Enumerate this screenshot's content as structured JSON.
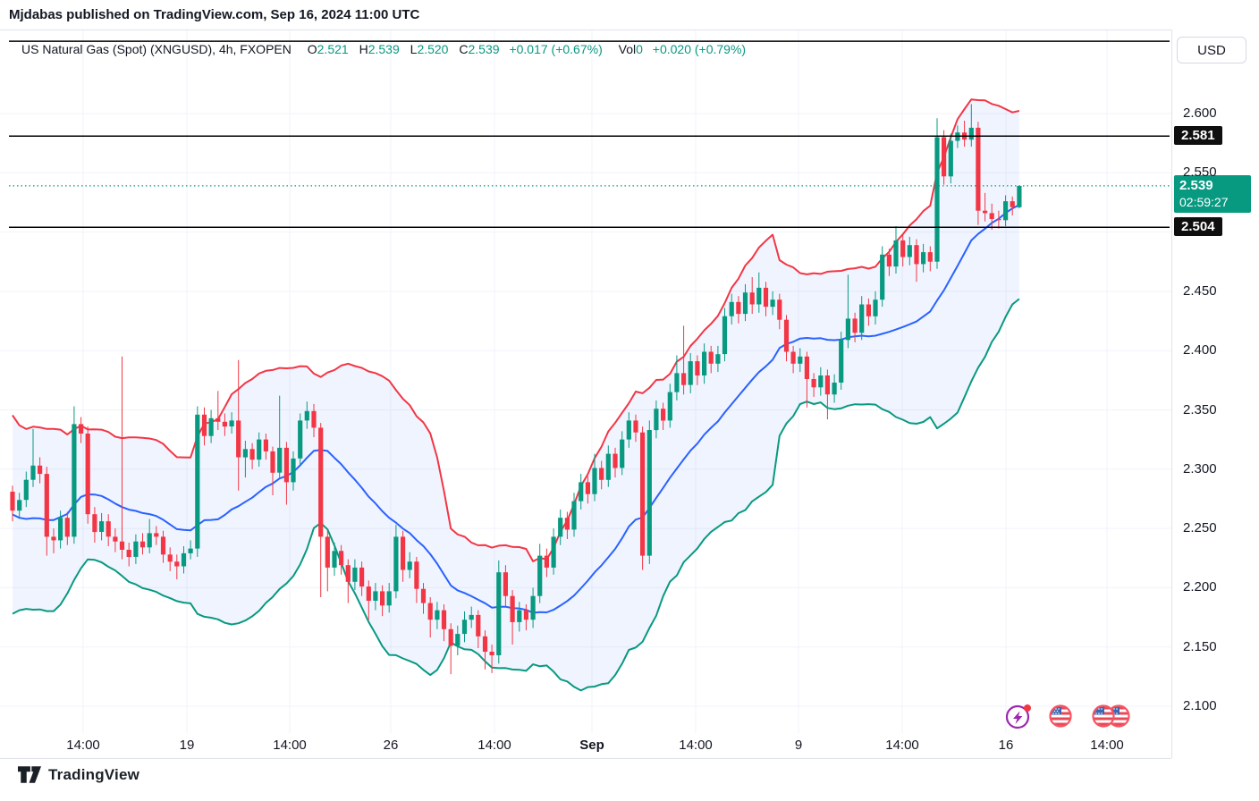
{
  "header": {
    "attribution": "Mjdabas published on TradingView.com, Sep 16, 2024 11:00 UTC"
  },
  "legend": {
    "symbol_line": "US Natural Gas (Spot) (XNGUSD), 4h, FXOPEN",
    "o_label": "O",
    "h_label": "H",
    "l_label": "L",
    "c_label": "C",
    "vol_label": "Vol"
  },
  "price_axis": {
    "currency": "USD"
  },
  "footer": {
    "logo_text": "TradingView"
  },
  "colors": {
    "up": "#089981",
    "down": "#f23645",
    "basis": "#2962ff",
    "band_fill": "rgba(41,98,255,0.07)",
    "grid": "#f0f3fa",
    "text": "#131722",
    "line_black": "#000000",
    "label_black_bg": "#0f0f0f",
    "current_bg": "#089981"
  },
  "events": {
    "flash": "flash-event",
    "flag": "us-flag-event",
    "flag_pair": "us-flag-pair-event"
  },
  "chart_data": {
    "type": "candlestick",
    "title": "US Natural Gas (Spot) (XNGUSD), 4h, FXOPEN",
    "symbol": "XNGUSD",
    "interval": "4h",
    "exchange": "FXOPEN",
    "ohlc_display": {
      "open": "2.521",
      "high": "2.539",
      "low": "2.520",
      "close": "2.539",
      "change": "+0.017 (+0.67%)",
      "volume": "0",
      "volume_change": "+0.020 (+0.79%)"
    },
    "indicator": {
      "name": "Bollinger Bands",
      "period": 20,
      "stddev": 2
    },
    "bb_warmup_closes": [
      2.32,
      2.33,
      2.31,
      2.29,
      2.3,
      2.27,
      2.24,
      2.21,
      2.19,
      2.18,
      2.2,
      2.22,
      2.25,
      2.28,
      2.3,
      2.31,
      2.29,
      2.27,
      2.26,
      2.27
    ],
    "candles": [
      [
        2.281,
        2.286,
        2.256,
        2.265
      ],
      [
        2.265,
        2.28,
        2.258,
        2.274
      ],
      [
        2.274,
        2.298,
        2.268,
        2.291
      ],
      [
        2.291,
        2.334,
        2.285,
        2.303
      ],
      [
        2.303,
        2.31,
        2.288,
        2.296
      ],
      [
        2.296,
        2.302,
        2.227,
        2.243
      ],
      [
        2.243,
        2.25,
        2.229,
        2.24
      ],
      [
        2.24,
        2.265,
        2.233,
        2.259
      ],
      [
        2.259,
        2.264,
        2.236,
        2.243
      ],
      [
        2.243,
        2.353,
        2.237,
        2.338
      ],
      [
        2.338,
        2.344,
        2.322,
        2.33
      ],
      [
        2.33,
        2.336,
        2.254,
        2.262
      ],
      [
        2.262,
        2.268,
        2.238,
        2.247
      ],
      [
        2.247,
        2.263,
        2.24,
        2.256
      ],
      [
        2.256,
        2.262,
        2.235,
        2.243
      ],
      [
        2.243,
        2.25,
        2.23,
        2.239
      ],
      [
        2.239,
        2.395,
        2.224,
        2.232
      ],
      [
        2.232,
        2.238,
        2.218,
        2.226
      ],
      [
        2.226,
        2.245,
        2.22,
        2.239
      ],
      [
        2.239,
        2.246,
        2.228,
        2.234
      ],
      [
        2.234,
        2.258,
        2.229,
        2.246
      ],
      [
        2.246,
        2.252,
        2.236,
        2.243
      ],
      [
        2.243,
        2.248,
        2.221,
        2.228
      ],
      [
        2.228,
        2.234,
        2.214,
        2.222
      ],
      [
        2.222,
        2.228,
        2.207,
        2.218
      ],
      [
        2.218,
        2.235,
        2.212,
        2.229
      ],
      [
        2.229,
        2.24,
        2.224,
        2.233
      ],
      [
        2.233,
        2.353,
        2.226,
        2.346
      ],
      [
        2.346,
        2.352,
        2.32,
        2.328
      ],
      [
        2.328,
        2.35,
        2.322,
        2.343
      ],
      [
        2.343,
        2.366,
        2.333,
        2.34
      ],
      [
        2.34,
        2.347,
        2.328,
        2.336
      ],
      [
        2.336,
        2.348,
        2.33,
        2.341
      ],
      [
        2.341,
        2.392,
        2.282,
        2.31
      ],
      [
        2.31,
        2.324,
        2.293,
        2.317
      ],
      [
        2.317,
        2.322,
        2.3,
        2.308
      ],
      [
        2.308,
        2.331,
        2.302,
        2.325
      ],
      [
        2.325,
        2.33,
        2.308,
        2.315
      ],
      [
        2.315,
        2.319,
        2.278,
        2.297
      ],
      [
        2.297,
        2.362,
        2.292,
        2.318
      ],
      [
        2.318,
        2.323,
        2.27,
        2.289
      ],
      [
        2.289,
        2.315,
        2.282,
        2.309
      ],
      [
        2.309,
        2.347,
        2.303,
        2.341
      ],
      [
        2.341,
        2.357,
        2.334,
        2.349
      ],
      [
        2.349,
        2.355,
        2.327,
        2.335
      ],
      [
        2.335,
        2.339,
        2.192,
        2.243
      ],
      [
        2.243,
        2.249,
        2.197,
        2.217
      ],
      [
        2.217,
        2.238,
        2.21,
        2.231
      ],
      [
        2.231,
        2.236,
        2.211,
        2.219
      ],
      [
        2.219,
        2.224,
        2.187,
        2.205
      ],
      [
        2.205,
        2.224,
        2.198,
        2.217
      ],
      [
        2.217,
        2.222,
        2.193,
        2.201
      ],
      [
        2.201,
        2.206,
        2.173,
        2.189
      ],
      [
        2.189,
        2.204,
        2.181,
        2.197
      ],
      [
        2.197,
        2.202,
        2.176,
        2.185
      ],
      [
        2.185,
        2.204,
        2.179,
        2.197
      ],
      [
        2.197,
        2.253,
        2.191,
        2.243
      ],
      [
        2.243,
        2.248,
        2.205,
        2.215
      ],
      [
        2.215,
        2.23,
        2.208,
        2.222
      ],
      [
        2.222,
        2.226,
        2.187,
        2.199
      ],
      [
        2.199,
        2.204,
        2.178,
        2.187
      ],
      [
        2.187,
        2.192,
        2.158,
        2.173
      ],
      [
        2.173,
        2.188,
        2.165,
        2.181
      ],
      [
        2.181,
        2.186,
        2.155,
        2.165
      ],
      [
        2.165,
        2.17,
        2.127,
        2.151
      ],
      [
        2.151,
        2.168,
        2.143,
        2.161
      ],
      [
        2.161,
        2.18,
        2.154,
        2.173
      ],
      [
        2.173,
        2.184,
        2.166,
        2.177
      ],
      [
        2.177,
        2.181,
        2.149,
        2.159
      ],
      [
        2.159,
        2.164,
        2.131,
        2.146
      ],
      [
        2.146,
        2.152,
        2.128,
        2.143
      ],
      [
        2.143,
        2.223,
        2.136,
        2.213
      ],
      [
        2.213,
        2.219,
        2.184,
        2.193
      ],
      [
        2.193,
        2.198,
        2.152,
        2.171
      ],
      [
        2.171,
        2.188,
        2.163,
        2.181
      ],
      [
        2.181,
        2.186,
        2.164,
        2.173
      ],
      [
        2.173,
        2.2,
        2.166,
        2.193
      ],
      [
        2.193,
        2.237,
        2.187,
        2.227
      ],
      [
        2.227,
        2.233,
        2.209,
        2.217
      ],
      [
        2.217,
        2.25,
        2.211,
        2.243
      ],
      [
        2.243,
        2.266,
        2.236,
        2.259
      ],
      [
        2.259,
        2.264,
        2.241,
        2.249
      ],
      [
        2.249,
        2.28,
        2.243,
        2.273
      ],
      [
        2.273,
        2.296,
        2.266,
        2.289
      ],
      [
        2.289,
        2.294,
        2.271,
        2.279
      ],
      [
        2.279,
        2.313,
        2.273,
        2.301
      ],
      [
        2.301,
        2.307,
        2.283,
        2.291
      ],
      [
        2.291,
        2.32,
        2.285,
        2.313
      ],
      [
        2.313,
        2.318,
        2.293,
        2.301
      ],
      [
        2.301,
        2.332,
        2.295,
        2.325
      ],
      [
        2.325,
        2.348,
        2.318,
        2.341
      ],
      [
        2.341,
        2.346,
        2.323,
        2.331
      ],
      [
        2.331,
        2.336,
        2.215,
        2.227
      ],
      [
        2.227,
        2.341,
        2.22,
        2.333
      ],
      [
        2.333,
        2.358,
        2.326,
        2.351
      ],
      [
        2.351,
        2.356,
        2.333,
        2.341
      ],
      [
        2.341,
        2.372,
        2.335,
        2.365
      ],
      [
        2.365,
        2.396,
        2.358,
        2.381
      ],
      [
        2.381,
        2.421,
        2.363,
        2.371
      ],
      [
        2.371,
        2.398,
        2.364,
        2.391
      ],
      [
        2.391,
        2.396,
        2.371,
        2.379
      ],
      [
        2.379,
        2.406,
        2.372,
        2.399
      ],
      [
        2.399,
        2.404,
        2.381,
        2.389
      ],
      [
        2.389,
        2.404,
        2.382,
        2.397
      ],
      [
        2.397,
        2.436,
        2.391,
        2.429
      ],
      [
        2.429,
        2.448,
        2.422,
        2.441
      ],
      [
        2.441,
        2.446,
        2.423,
        2.431
      ],
      [
        2.431,
        2.456,
        2.425,
        2.449
      ],
      [
        2.449,
        2.462,
        2.431,
        2.439
      ],
      [
        2.439,
        2.466,
        2.432,
        2.453
      ],
      [
        2.453,
        2.458,
        2.429,
        2.437
      ],
      [
        2.437,
        2.45,
        2.43,
        2.443
      ],
      [
        2.443,
        2.448,
        2.418,
        2.426
      ],
      [
        2.426,
        2.43,
        2.391,
        2.399
      ],
      [
        2.399,
        2.404,
        2.381,
        2.389
      ],
      [
        2.389,
        2.402,
        2.382,
        2.395
      ],
      [
        2.395,
        2.399,
        2.352,
        2.376
      ],
      [
        2.376,
        2.381,
        2.361,
        2.369
      ],
      [
        2.369,
        2.386,
        2.362,
        2.379
      ],
      [
        2.379,
        2.384,
        2.342,
        2.363
      ],
      [
        2.363,
        2.38,
        2.356,
        2.373
      ],
      [
        2.373,
        2.416,
        2.367,
        2.409
      ],
      [
        2.409,
        2.464,
        2.402,
        2.427
      ],
      [
        2.427,
        2.432,
        2.407,
        2.415
      ],
      [
        2.415,
        2.446,
        2.409,
        2.439
      ],
      [
        2.439,
        2.444,
        2.421,
        2.429
      ],
      [
        2.429,
        2.45,
        2.422,
        2.443
      ],
      [
        2.443,
        2.488,
        2.437,
        2.481
      ],
      [
        2.481,
        2.486,
        2.463,
        2.471
      ],
      [
        2.471,
        2.505,
        2.465,
        2.493
      ],
      [
        2.493,
        2.498,
        2.471,
        2.479
      ],
      [
        2.479,
        2.496,
        2.472,
        2.489
      ],
      [
        2.489,
        2.494,
        2.458,
        2.473
      ],
      [
        2.473,
        2.49,
        2.466,
        2.483
      ],
      [
        2.483,
        2.488,
        2.467,
        2.475
      ],
      [
        2.475,
        2.596,
        2.469,
        2.58
      ],
      [
        2.58,
        2.586,
        2.54,
        2.547
      ],
      [
        2.547,
        2.583,
        2.541,
        2.577
      ],
      [
        2.577,
        2.59,
        2.571,
        2.584
      ],
      [
        2.584,
        2.594,
        2.572,
        2.578
      ],
      [
        2.578,
        2.608,
        2.572,
        2.588
      ],
      [
        2.588,
        2.593,
        2.506,
        2.518
      ],
      [
        2.518,
        2.533,
        2.509,
        2.516
      ],
      [
        2.516,
        2.524,
        2.502,
        2.511
      ],
      [
        2.511,
        2.518,
        2.503,
        2.51
      ],
      [
        2.51,
        2.531,
        2.505,
        2.526
      ],
      [
        2.526,
        2.53,
        2.514,
        2.521
      ],
      [
        2.521,
        2.539,
        2.52,
        2.539
      ]
    ],
    "price_ticks": [
      {
        "label": "2.600",
        "price": 2.6
      },
      {
        "label": "2.550",
        "price": 2.55
      },
      {
        "label": "2.450",
        "price": 2.45
      },
      {
        "label": "2.400",
        "price": 2.4
      },
      {
        "label": "2.350",
        "price": 2.35
      },
      {
        "label": "2.300",
        "price": 2.3
      },
      {
        "label": "2.250",
        "price": 2.25
      },
      {
        "label": "2.200",
        "price": 2.2
      },
      {
        "label": "2.150",
        "price": 2.15
      },
      {
        "label": "2.100",
        "price": 2.1
      }
    ],
    "time_ticks": [
      {
        "label": "14:00",
        "x": 93
      },
      {
        "label": "19",
        "x": 209
      },
      {
        "label": "14:00",
        "x": 324
      },
      {
        "label": "26",
        "x": 437
      },
      {
        "label": "14:00",
        "x": 553
      },
      {
        "label": "Sep",
        "x": 662,
        "bold": true
      },
      {
        "label": "14:00",
        "x": 778
      },
      {
        "label": "9",
        "x": 893
      },
      {
        "label": "14:00",
        "x": 1009
      },
      {
        "label": "16",
        "x": 1125
      },
      {
        "label": "14:00",
        "x": 1238
      }
    ],
    "horizontal_lines": [
      {
        "price": 2.581,
        "label": "2.581"
      },
      {
        "price": 2.504,
        "label": "2.504"
      },
      {
        "price": 2.661,
        "label": ""
      }
    ],
    "current_price": {
      "price": 2.539,
      "label": "2.539",
      "countdown": "02:59:27"
    },
    "ylim": [
      2.08,
      2.67
    ],
    "grid": true,
    "legend_position": "top-left"
  }
}
